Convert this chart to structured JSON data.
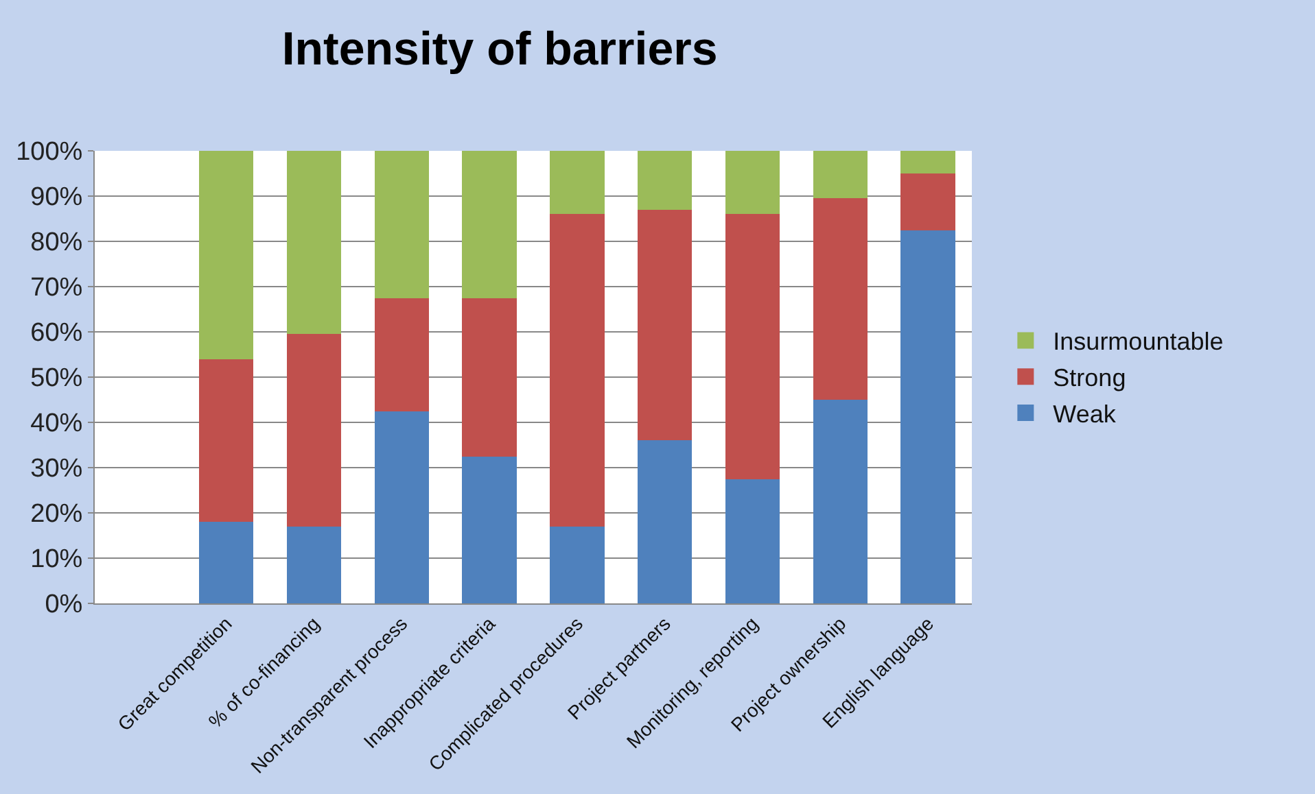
{
  "chart_data": {
    "type": "bar",
    "title": "Intensity of barriers",
    "stacked": true,
    "categories": [
      null,
      "Great competition",
      "% of co-financing",
      "Non-transparent process",
      "Inappropriate criteria",
      "Complicated procedures",
      "Project partners",
      "Monitoring, reporting",
      "Project ownership",
      "English language"
    ],
    "series": [
      {
        "name": "Weak",
        "color": "#4f81bd",
        "values": [
          null,
          18,
          17,
          42.5,
          32.5,
          17,
          36,
          27.5,
          45,
          82.5
        ]
      },
      {
        "name": "Strong",
        "color": "#c0504d",
        "values": [
          null,
          36,
          42.5,
          25,
          35,
          69,
          51,
          58.5,
          44.5,
          12.5
        ]
      },
      {
        "name": "Insurmountable",
        "color": "#9bbb59",
        "values": [
          null,
          46,
          40.5,
          32.5,
          32.5,
          14,
          13,
          14,
          10.5,
          5
        ]
      }
    ],
    "ylim": [
      0,
      100
    ],
    "yticks": [
      {
        "value": 0,
        "label": "0%"
      },
      {
        "value": 10,
        "label": "10%"
      },
      {
        "value": 20,
        "label": "20%"
      },
      {
        "value": 30,
        "label": "30%"
      },
      {
        "value": 40,
        "label": "40%"
      },
      {
        "value": 50,
        "label": "50%"
      },
      {
        "value": 60,
        "label": "60%"
      },
      {
        "value": 70,
        "label": "70%"
      },
      {
        "value": 80,
        "label": "80%"
      },
      {
        "value": 90,
        "label": "90%"
      },
      {
        "value": 100,
        "label": "100%"
      }
    ],
    "grid": "y",
    "legend": "right"
  }
}
